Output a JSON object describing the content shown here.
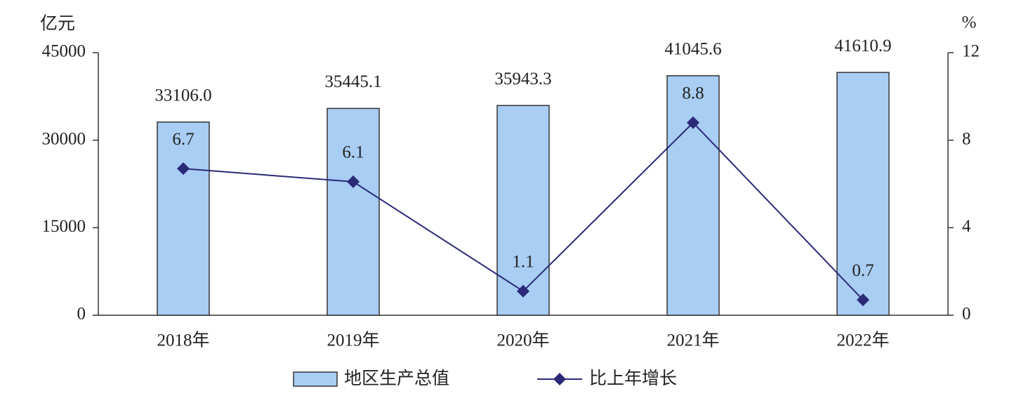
{
  "chart_data": {
    "type": "bar",
    "y_label": "亿元",
    "y2_label": "%",
    "categories": [
      "2018年",
      "2019年",
      "2020年",
      "2021年",
      "2022年"
    ],
    "series": [
      {
        "name": "地区生产总值",
        "type": "bar",
        "color": "#a9cdf3",
        "values": [
          33106.0,
          35445.1,
          35943.3,
          41045.6,
          41610.9
        ],
        "value_labels": [
          "33106.0",
          "35445.1",
          "35943.3",
          "41045.6",
          "41610.9"
        ]
      },
      {
        "name": "比上年增长",
        "type": "line",
        "axis": "y2",
        "color": "#2b2a78",
        "values": [
          6.7,
          6.1,
          1.1,
          8.8,
          0.7
        ]
      }
    ],
    "ylim": [
      0,
      45000
    ],
    "yticks": [
      0,
      15000,
      30000,
      45000
    ],
    "y2lim": [
      0,
      12
    ],
    "y2ticks": [
      0,
      4,
      8,
      12
    ],
    "legend": "bottom"
  }
}
